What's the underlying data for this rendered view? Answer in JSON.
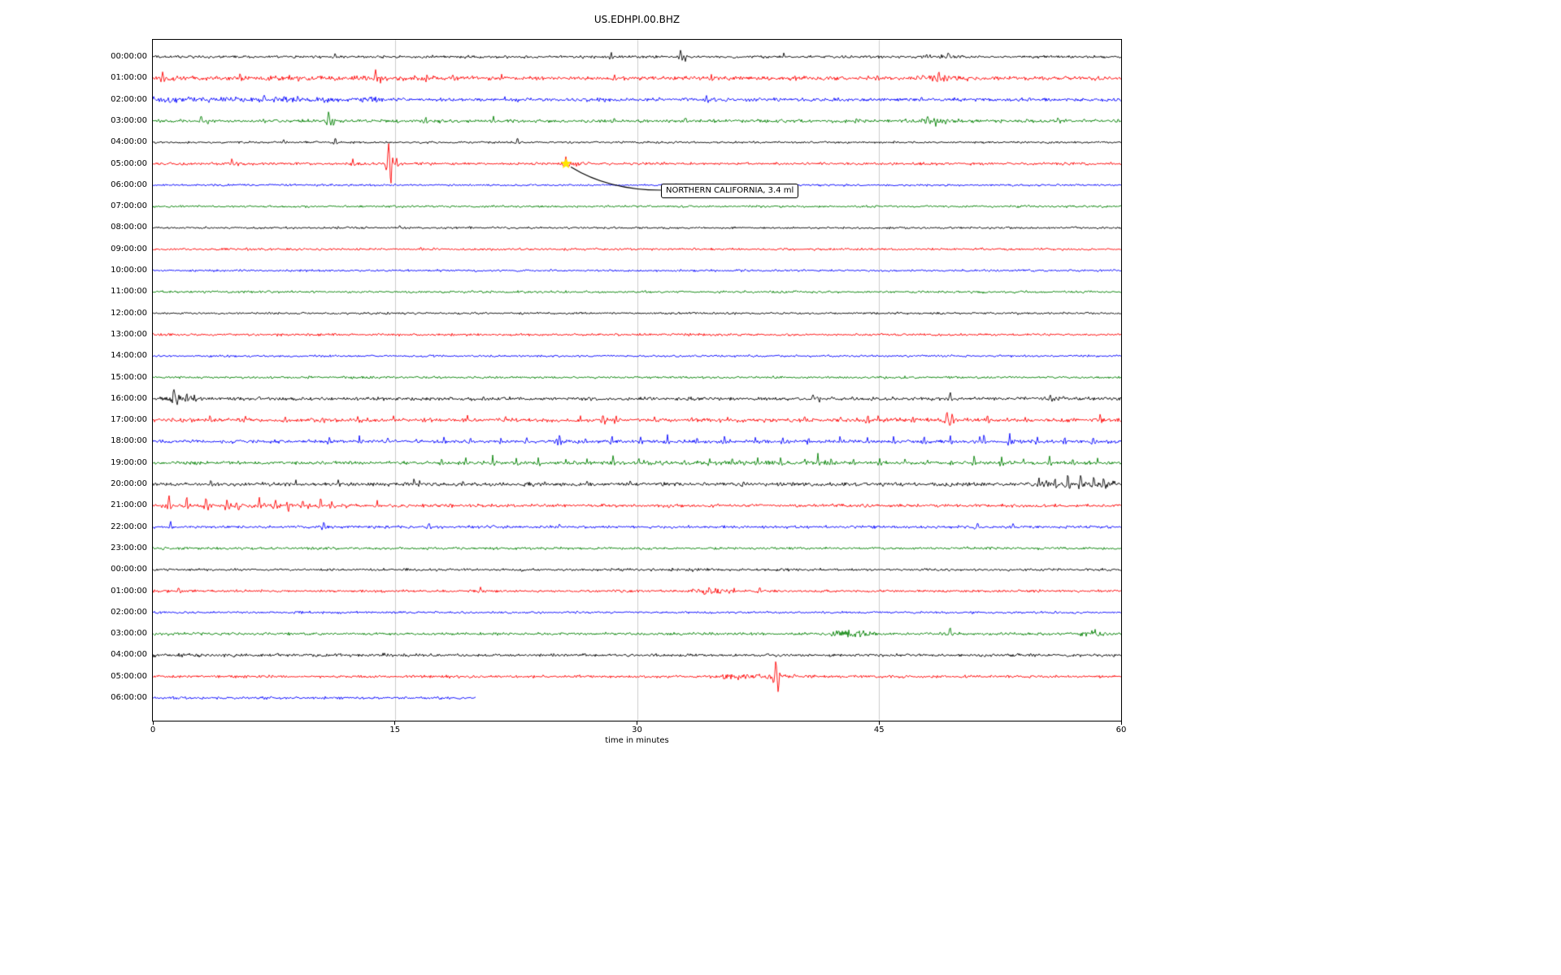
{
  "title": "US.EDHPI.00.BHZ",
  "chart_data": {
    "type": "line",
    "subtype": "helicorder-seismogram",
    "title": "US.EDHPI.00.BHZ",
    "xlabel": "time in minutes",
    "x_range": [
      0,
      60
    ],
    "x_ticks": [
      0,
      15,
      30,
      45,
      60
    ],
    "grid_x": [
      15,
      30,
      45
    ],
    "grid_color": "#cccccc",
    "trace_colors": {
      "black": "#000000",
      "red": "#ff0000",
      "blue": "#0000ff",
      "green": "#008000"
    },
    "annotation": {
      "text": "NORTHERN CALIFORNIA, 3.4 ml",
      "row_index": 5,
      "row_label": "05:00:00",
      "t_minutes": 25.6,
      "marker": "star",
      "marker_color": "#ffe600"
    },
    "rows": [
      {
        "label": "00:00:00",
        "color": "black",
        "base": 1.4,
        "events": [
          {
            "t": 11.3,
            "a": 4,
            "w": 0.08
          },
          {
            "t": 28.4,
            "a": 5,
            "w": 0.07
          },
          {
            "t": 32.7,
            "a": 9,
            "w": 0.08
          },
          {
            "t": 33.0,
            "a": -6,
            "w": 0.07
          },
          {
            "t": 39.1,
            "a": 6,
            "w": 0.07
          },
          {
            "band": [
              47.5,
              50.2
            ],
            "m": 1.6
          },
          {
            "t": 49.3,
            "a": 4,
            "w": 0.1
          }
        ]
      },
      {
        "label": "01:00:00",
        "color": "red",
        "base": 1.9,
        "events": [
          {
            "band": [
              0,
              20
            ],
            "m": 1.3
          },
          {
            "t": 0.6,
            "a": 6,
            "w": 0.08
          },
          {
            "t": 5.4,
            "a": 5,
            "w": 0.07
          },
          {
            "t": 7.3,
            "a": 4,
            "w": 0.06
          },
          {
            "t": 13.8,
            "a": 10,
            "w": 0.09
          },
          {
            "t": 14.1,
            "a": -7,
            "w": 0.06
          },
          {
            "t": 17.0,
            "a": 7,
            "w": 0.07
          },
          {
            "t": 18.6,
            "a": 6,
            "w": 0.07
          },
          {
            "t": 21.6,
            "a": 5,
            "w": 0.06
          },
          {
            "t": 23.4,
            "a": 4,
            "w": 0.06
          },
          {
            "t": 28.6,
            "a": 4,
            "w": 0.06
          },
          {
            "t": 34.6,
            "a": 4,
            "w": 0.06
          },
          {
            "t": 44.9,
            "a": 5,
            "w": 0.07
          },
          {
            "band": [
              47.6,
              50.6
            ],
            "m": 1.6
          },
          {
            "t": 48.7,
            "a": 9,
            "w": 0.09
          },
          {
            "t": 49.2,
            "a": -7,
            "w": 0.07
          }
        ]
      },
      {
        "label": "02:00:00",
        "color": "blue",
        "base": 1.8,
        "events": [
          {
            "band": [
              0,
              15
            ],
            "m": 1.7
          },
          {
            "t": 6.9,
            "a": 5,
            "w": 0.1
          },
          {
            "t": 7.6,
            "a": 5,
            "w": 0.08
          },
          {
            "t": 9.0,
            "a": 4,
            "w": 0.1
          },
          {
            "t": 21.8,
            "a": 4,
            "w": 0.07
          },
          {
            "band": [
              26.8,
              28.8
            ],
            "m": 1.4
          },
          {
            "t": 34.3,
            "a": 6,
            "w": 0.08
          },
          {
            "t": 34.9,
            "a": -4,
            "w": 0.07
          }
        ]
      },
      {
        "label": "03:00:00",
        "color": "green",
        "base": 1.7,
        "events": [
          {
            "t": 3.0,
            "a": 5,
            "w": 0.1
          },
          {
            "t": 3.4,
            "a": -4,
            "w": 0.07
          },
          {
            "t": 10.9,
            "a": 11,
            "w": 0.1
          },
          {
            "t": 11.2,
            "a": -7,
            "w": 0.07
          },
          {
            "t": 16.9,
            "a": 4,
            "w": 0.07
          },
          {
            "t": 21.1,
            "a": 5,
            "w": 0.08
          },
          {
            "t": 28.6,
            "a": 5,
            "w": 0.07
          },
          {
            "t": 33.0,
            "a": 3,
            "w": 0.1
          },
          {
            "t": 43.6,
            "a": 4,
            "w": 0.08
          },
          {
            "band": [
              47.4,
              49.6
            ],
            "m": 1.5
          },
          {
            "t": 48.0,
            "a": 7,
            "w": 0.1
          },
          {
            "t": 48.5,
            "a": -5,
            "w": 0.07
          },
          {
            "t": 56.1,
            "a": 4,
            "w": 0.08
          }
        ]
      },
      {
        "label": "04:00:00",
        "color": "black",
        "base": 1.1,
        "events": [
          {
            "t": 8.1,
            "a": 3,
            "w": 0.07
          },
          {
            "t": 11.3,
            "a": 6,
            "w": 0.08
          },
          {
            "t": 22.6,
            "a": 6,
            "w": 0.08
          }
        ]
      },
      {
        "label": "05:00:00",
        "color": "red",
        "base": 1.4,
        "events": [
          {
            "t": 4.9,
            "a": 6,
            "w": 0.08
          },
          {
            "t": 5.3,
            "a": -4,
            "w": 0.06
          },
          {
            "t": 12.4,
            "a": 5,
            "w": 0.07
          },
          {
            "t": 14.6,
            "a": 22,
            "w": 0.1
          },
          {
            "t": 14.75,
            "a": -18,
            "w": 0.08
          },
          {
            "t": 15.1,
            "a": 8,
            "w": 0.06
          },
          {
            "band": [
              25.3,
              27.2
            ],
            "m": 2.2
          },
          {
            "t": 25.6,
            "a": 6,
            "w": 0.12
          }
        ]
      },
      {
        "label": "06:00:00",
        "color": "blue",
        "base": 1.1,
        "events": []
      },
      {
        "label": "07:00:00",
        "color": "green",
        "base": 1.1,
        "events": []
      },
      {
        "label": "08:00:00",
        "color": "black",
        "base": 1.1,
        "events": [
          {
            "t": 15.3,
            "a": 2.5,
            "w": 0.07
          }
        ]
      },
      {
        "label": "09:00:00",
        "color": "red",
        "base": 1.2,
        "events": [
          {
            "t": 16.6,
            "a": 2.5,
            "w": 0.07
          }
        ]
      },
      {
        "label": "10:00:00",
        "color": "blue",
        "base": 1.1,
        "events": []
      },
      {
        "label": "11:00:00",
        "color": "green",
        "base": 1.2,
        "events": []
      },
      {
        "label": "12:00:00",
        "color": "black",
        "base": 1.1,
        "events": []
      },
      {
        "label": "13:00:00",
        "color": "red",
        "base": 1.2,
        "events": []
      },
      {
        "label": "14:00:00",
        "color": "blue",
        "base": 1.1,
        "events": []
      },
      {
        "label": "15:00:00",
        "color": "green",
        "base": 1.2,
        "events": []
      },
      {
        "label": "16:00:00",
        "color": "black",
        "base": 1.7,
        "events": [
          {
            "band": [
              0.8,
              2.7
            ],
            "m": 1.8
          },
          {
            "t": 1.3,
            "a": 13,
            "w": 0.09
          },
          {
            "t": 1.5,
            "a": -10,
            "w": 0.07
          },
          {
            "t": 2.1,
            "a": 7,
            "w": 0.07
          },
          {
            "t": 40.9,
            "a": 5,
            "w": 0.08
          },
          {
            "t": 41.3,
            "a": -4,
            "w": 0.07
          },
          {
            "t": 49.4,
            "a": 8,
            "w": 0.09
          },
          {
            "band": [
              55,
              57.2
            ],
            "m": 1.4
          },
          {
            "t": 55.6,
            "a": 5,
            "w": 0.08
          },
          {
            "t": 56.1,
            "a": -4,
            "w": 0.07
          }
        ]
      },
      {
        "label": "17:00:00",
        "color": "red",
        "base": 1.9,
        "events": [
          {
            "train": [
              1.2,
              59,
              2.3
            ],
            "a": 4.5,
            "w": 0.07
          },
          {
            "t": 27.9,
            "a": 7,
            "w": 0.08
          },
          {
            "t": 44.3,
            "a": 6,
            "w": 0.08
          },
          {
            "t": 49.2,
            "a": 9,
            "w": 0.09
          },
          {
            "t": 49.4,
            "a": -7,
            "w": 0.07
          }
        ]
      },
      {
        "label": "18:00:00",
        "color": "blue",
        "base": 1.7,
        "events": [
          {
            "train": [
              11,
              59.5,
              1.75
            ],
            "a": 6.5,
            "w": 0.07
          },
          {
            "t": 25.2,
            "a": 9,
            "w": 0.08
          },
          {
            "t": 51.5,
            "a": 8,
            "w": 0.08
          }
        ]
      },
      {
        "label": "19:00:00",
        "color": "green",
        "base": 1.7,
        "events": [
          {
            "train": [
              18,
              59.5,
              1.5
            ],
            "a": 6.5,
            "w": 0.07
          },
          {
            "band": [
              30,
              42
            ],
            "m": 1.4
          },
          {
            "t": 41.2,
            "a": 9,
            "w": 0.09
          }
        ]
      },
      {
        "label": "20:00:00",
        "color": "black",
        "base": 1.9,
        "events": [
          {
            "train": [
              1,
              30,
              2.6
            ],
            "a": 3.5,
            "w": 0.07
          },
          {
            "t": 16.2,
            "a": 7,
            "w": 0.08
          },
          {
            "t": 36.6,
            "a": 5,
            "w": 0.07
          },
          {
            "band": [
              54.8,
              60
            ],
            "m": 1.8
          },
          {
            "t": 54.9,
            "a": 7,
            "w": 0.08
          },
          {
            "t": 55.9,
            "a": 8,
            "w": 0.08
          },
          {
            "t": 56.7,
            "a": 10,
            "w": 0.08
          },
          {
            "t": 57.5,
            "a": 12,
            "w": 0.09
          },
          {
            "t": 58.3,
            "a": 10,
            "w": 0.08
          },
          {
            "t": 58.9,
            "a": 9,
            "w": 0.08
          }
        ]
      },
      {
        "label": "21:00:00",
        "color": "red",
        "base": 1.6,
        "events": [
          {
            "band": [
              0,
              12
            ],
            "m": 1.5
          },
          {
            "t": 1.0,
            "a": 11,
            "w": 0.09
          },
          {
            "t": 2.1,
            "a": 9,
            "w": 0.08
          },
          {
            "t": 3.3,
            "a": 10,
            "w": 0.09
          },
          {
            "t": 4.6,
            "a": 8,
            "w": 0.08
          },
          {
            "t": 5.3,
            "a": -7,
            "w": 0.07
          },
          {
            "t": 6.6,
            "a": 8,
            "w": 0.08
          },
          {
            "t": 7.6,
            "a": 7,
            "w": 0.08
          },
          {
            "t": 8.4,
            "a": -6,
            "w": 0.07
          },
          {
            "t": 9.3,
            "a": 7,
            "w": 0.08
          },
          {
            "t": 10.4,
            "a": 8,
            "w": 0.08
          },
          {
            "t": 11.1,
            "a": 6,
            "w": 0.07
          },
          {
            "t": 13.9,
            "a": 5,
            "w": 0.07
          }
        ]
      },
      {
        "label": "22:00:00",
        "color": "blue",
        "base": 1.4,
        "events": [
          {
            "t": 1.1,
            "a": 7,
            "w": 0.09
          },
          {
            "t": 10.6,
            "a": 6,
            "w": 0.09
          },
          {
            "t": 17.1,
            "a": 5,
            "w": 0.1
          },
          {
            "t": 25.2,
            "a": 3,
            "w": 0.08
          },
          {
            "t": 51.1,
            "a": 5,
            "w": 0.1
          },
          {
            "t": 53.3,
            "a": 4,
            "w": 0.08
          }
        ]
      },
      {
        "label": "23:00:00",
        "color": "green",
        "base": 1.3,
        "events": []
      },
      {
        "label": "00:00:00",
        "color": "black",
        "base": 1.3,
        "events": [
          {
            "band": [
              32,
              34.5
            ],
            "m": 1.4
          }
        ]
      },
      {
        "label": "01:00:00",
        "color": "red",
        "base": 1.3,
        "events": [
          {
            "t": 1.6,
            "a": 4,
            "w": 0.08
          },
          {
            "t": 20.3,
            "a": 4,
            "w": 0.09
          },
          {
            "band": [
              33.3,
              36.2
            ],
            "m": 2.4
          },
          {
            "t": 34.5,
            "a": 4,
            "w": 0.1
          },
          {
            "t": 37.6,
            "a": 4,
            "w": 0.09
          }
        ]
      },
      {
        "label": "02:00:00",
        "color": "blue",
        "base": 1.2,
        "events": []
      },
      {
        "label": "03:00:00",
        "color": "green",
        "base": 1.4,
        "events": [
          {
            "band": [
              42,
              44.8
            ],
            "m": 2.3
          },
          {
            "t": 49.4,
            "a": 7,
            "w": 0.09
          },
          {
            "band": [
              57.3,
              59.2
            ],
            "m": 2.0
          },
          {
            "t": 58.4,
            "a": 4,
            "w": 0.08
          }
        ]
      },
      {
        "label": "04:00:00",
        "color": "black",
        "base": 1.5,
        "events": [
          {
            "band": [
              0,
              15
            ],
            "m": 1.25
          }
        ]
      },
      {
        "label": "05:00:00",
        "color": "red",
        "base": 1.4,
        "events": [
          {
            "band": [
              35.3,
              39.8
            ],
            "m": 1.9
          },
          {
            "t": 38.6,
            "a": 16,
            "w": 0.1
          },
          {
            "t": 38.75,
            "a": -14,
            "w": 0.08
          }
        ]
      },
      {
        "label": "06:00:00",
        "color": "blue",
        "base": 1.3,
        "dur": 20,
        "events": []
      }
    ]
  }
}
